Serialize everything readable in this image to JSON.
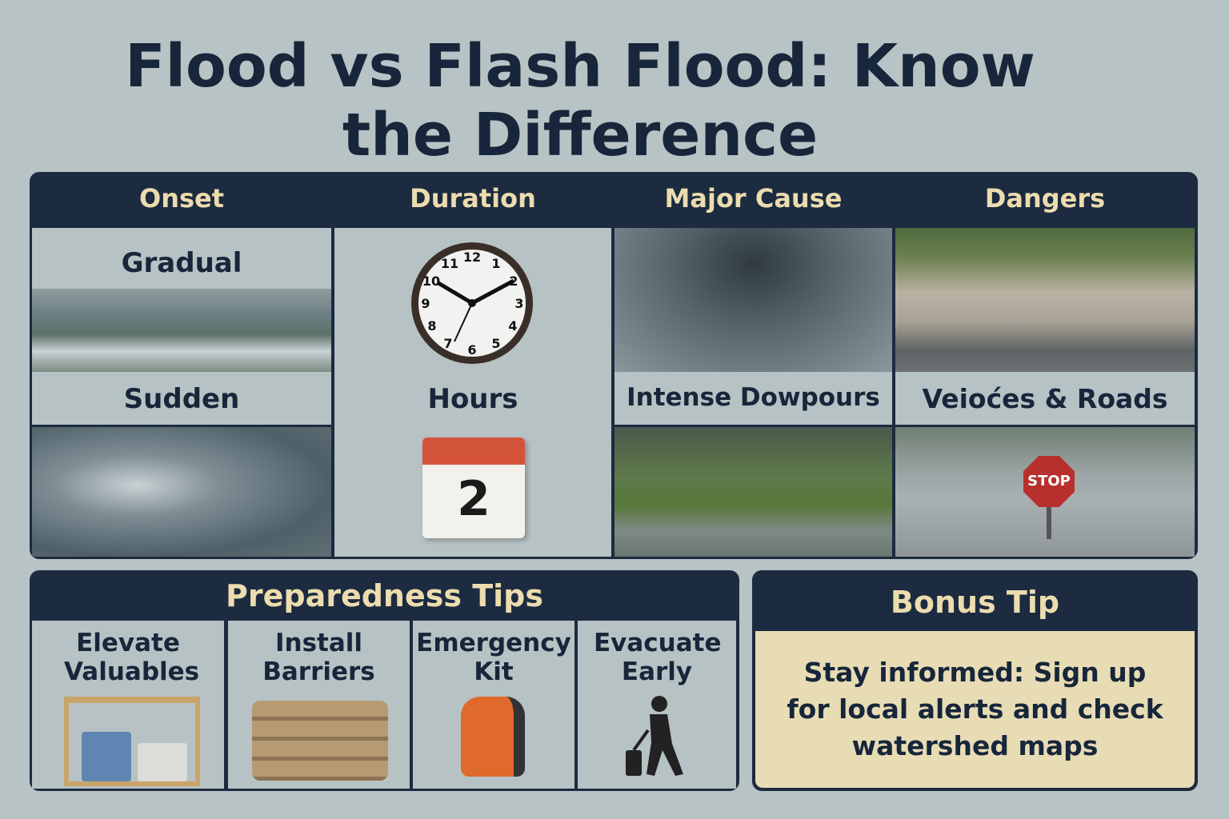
{
  "title": {
    "line1": "Flood vs Flash Flood: Know",
    "line2": "the Difference"
  },
  "comparison": {
    "columns": [
      {
        "header": "Onset",
        "top_label": "Gradual",
        "bottom_label": "Sudden"
      },
      {
        "header": "Duration",
        "label": "Hours",
        "calendar_number": "2"
      },
      {
        "header": "Major Cause",
        "label": "Intense Dowpours"
      },
      {
        "header": "Dangers",
        "label": "Veioćes & Roads",
        "sign_text": "STOP"
      }
    ]
  },
  "preparedness": {
    "header": "Preparedness Tips",
    "tips": [
      {
        "label": "Elevate Valuables",
        "icon": "shelf-with-bins"
      },
      {
        "label": "Install Barriers",
        "icon": "sandbags"
      },
      {
        "label": "Emergency Kit",
        "icon": "backpack"
      },
      {
        "label": "Evacuate Early",
        "icon": "person-with-suitcase"
      }
    ]
  },
  "bonus": {
    "header": "Bonus Tip",
    "text": "Stay informed: Sign up for local alerts and check watershed maps"
  },
  "colors": {
    "navy": "#1c2b40",
    "header_text": "#ecdcae",
    "background": "#b8c3c5",
    "bonus_body": "#e8dcb5"
  }
}
